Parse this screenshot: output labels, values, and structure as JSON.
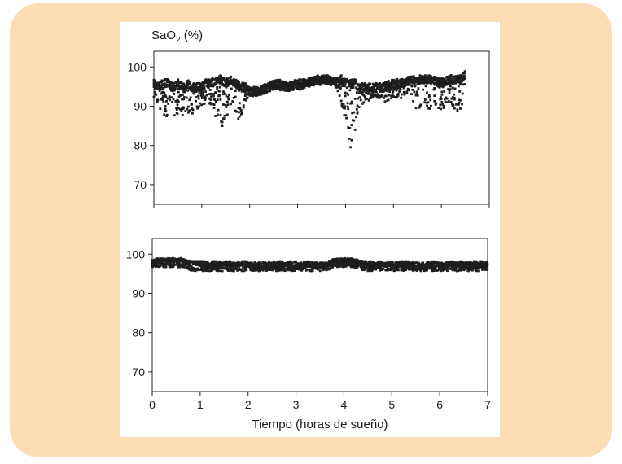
{
  "chart_data": [
    {
      "type": "scatter",
      "panel": "top",
      "ylabel_main": "SaO",
      "ylabel_sub": "2",
      "ylabel_unit": " (%)",
      "xlim": [
        0,
        7
      ],
      "ylim": [
        65,
        104
      ],
      "yticks": [
        70,
        80,
        90,
        100
      ],
      "ytick_labels": [
        "70",
        "80",
        "90",
        "100"
      ],
      "x_range_data": [
        0,
        6.5
      ],
      "color": "#1e1e1e",
      "series": [
        {
          "values_hint": "nocturnal oxygen saturation with frequent desaturations",
          "x": [
            0.0,
            0.1,
            0.2,
            0.3,
            0.4,
            0.5,
            0.6,
            0.7,
            0.8,
            0.9,
            1.0,
            1.1,
            1.2,
            1.3,
            1.4,
            1.5,
            1.6,
            1.7,
            1.8,
            1.9,
            2.0,
            2.2,
            2.4,
            2.6,
            2.8,
            3.0,
            3.2,
            3.4,
            3.6,
            3.8,
            3.9,
            4.0,
            4.05,
            4.1,
            4.15,
            4.2,
            4.3,
            4.4,
            4.6,
            4.8,
            5.0,
            5.2,
            5.4,
            5.5,
            5.6,
            5.8,
            6.0,
            6.2,
            6.3,
            6.4,
            6.5
          ],
          "high": [
            97,
            96,
            97,
            97,
            96,
            97,
            96,
            97,
            96,
            96,
            96,
            97,
            97,
            98,
            98,
            97,
            98,
            97,
            96,
            96,
            95,
            95,
            96,
            97,
            96,
            97,
            97,
            98,
            98,
            97,
            98,
            97,
            97,
            97,
            97,
            97,
            96,
            96,
            96,
            96,
            97,
            97,
            98,
            98,
            98,
            98,
            97,
            98,
            98,
            98,
            99
          ],
          "low": [
            92,
            89,
            88,
            87,
            87,
            88,
            87,
            88,
            88,
            89,
            90,
            91,
            90,
            86,
            84,
            86,
            90,
            88,
            86,
            90,
            92,
            93,
            94,
            94,
            94,
            94,
            95,
            95,
            96,
            95,
            91,
            86,
            82,
            78,
            80,
            84,
            90,
            91,
            92,
            91,
            92,
            92,
            90,
            89,
            90,
            89,
            89,
            90,
            89,
            88,
            95
          ]
        }
      ]
    },
    {
      "type": "scatter",
      "panel": "bottom",
      "xlabel": "Tiempo (horas de sueño)",
      "xlim": [
        0,
        7
      ],
      "ylim": [
        65,
        104
      ],
      "xticks": [
        0,
        1,
        2,
        3,
        4,
        5,
        6,
        7
      ],
      "xtick_labels": [
        "0",
        "1",
        "2",
        "3",
        "4",
        "5",
        "6",
        "7"
      ],
      "yticks": [
        70,
        80,
        90,
        100
      ],
      "ytick_labels": [
        "70",
        "80",
        "90",
        "100"
      ],
      "color": "#1e1e1e",
      "series": [
        {
          "values_hint": "stable oxygen saturation with treatment",
          "x": [
            0.0,
            0.2,
            0.4,
            0.6,
            0.8,
            1.0,
            1.2,
            1.4,
            1.6,
            1.8,
            2.0,
            2.2,
            2.4,
            2.6,
            2.8,
            3.0,
            3.2,
            3.4,
            3.6,
            3.8,
            4.0,
            4.2,
            4.4,
            4.6,
            4.8,
            5.0,
            5.2,
            5.4,
            5.6,
            5.8,
            6.0,
            6.2,
            6.4,
            6.6,
            6.8,
            7.0
          ],
          "high": [
            99,
            99,
            99,
            99,
            98,
            98,
            98,
            98,
            98,
            98,
            98,
            98,
            98,
            98,
            98,
            98,
            98,
            98,
            98,
            99,
            99,
            99,
            98,
            98,
            98,
            98,
            98,
            98,
            98,
            98,
            98,
            98,
            98,
            98,
            98,
            98
          ],
          "low": [
            97,
            98,
            98,
            98,
            98,
            98,
            97,
            97,
            97,
            97,
            97,
            96,
            96,
            97,
            97,
            96,
            97,
            96,
            97,
            97,
            98,
            97,
            97,
            97,
            97,
            97,
            96,
            96,
            96,
            97,
            96,
            97,
            97,
            97,
            97,
            97
          ]
        }
      ]
    }
  ]
}
